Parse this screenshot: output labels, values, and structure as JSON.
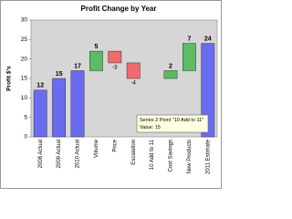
{
  "chart_data": {
    "type": "waterfall",
    "title": "Profit Change by Year",
    "y_label": "Profit $'s",
    "categories": [
      "2008 Actual",
      "2009 Actual",
      "2010 Actual",
      "Volume",
      "Price",
      "Escalation",
      "10 Add to 11",
      "Cost Savings",
      "New Products",
      "2011 Estimate"
    ],
    "values": [
      12,
      15,
      17,
      5,
      -3,
      -4,
      null,
      2,
      7,
      24
    ],
    "measure": [
      "absolute",
      "absolute",
      "absolute",
      "relative",
      "relative",
      "relative",
      "relative",
      "relative",
      "relative",
      "absolute"
    ],
    "colors": {
      "absolute": "#6a6cf0",
      "increase": "#5dbb63",
      "decrease": "#f06a6a"
    },
    "ylim": [
      0,
      30
    ],
    "yticks": [
      0,
      5,
      10,
      15,
      20,
      25,
      30
    ],
    "grid": false,
    "tooltip": {
      "title": "Series 2 Point \"10 Add to 11\"",
      "text": "Value: 15"
    }
  }
}
